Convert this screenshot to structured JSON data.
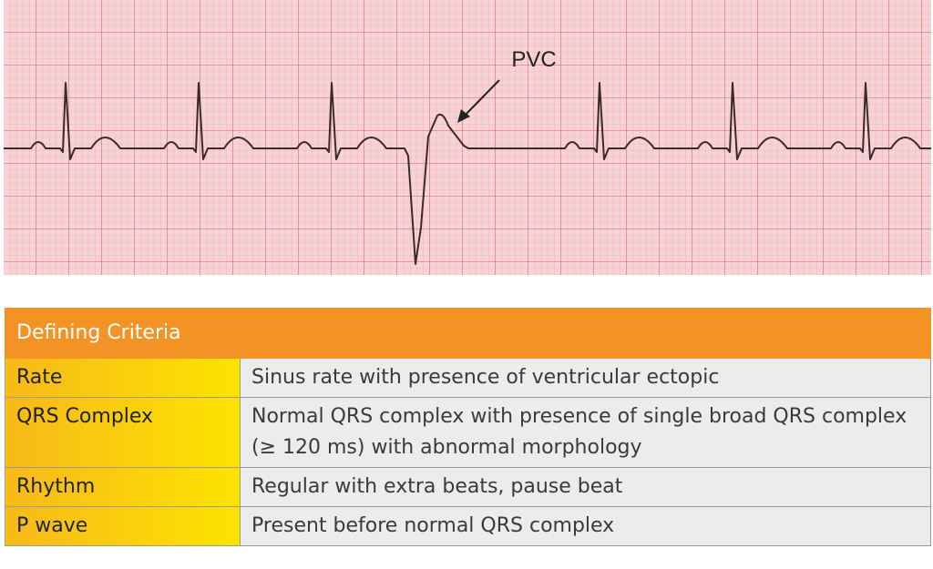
{
  "ecg": {
    "label": "PVC"
  },
  "table": {
    "header": [
      "Defining Criteria",
      ""
    ],
    "rows": [
      [
        "Rate",
        "Sinus rate with presence of ventricular ectopic"
      ],
      [
        "QRS Complex",
        "Normal QRS complex with presence of single broad QRS complex (≥ 120 ms) with abnormal morphology"
      ],
      [
        "Rhythm",
        "Regular with extra beats, pause beat"
      ],
      [
        "P wave",
        "Present before normal QRS complex"
      ]
    ]
  }
}
